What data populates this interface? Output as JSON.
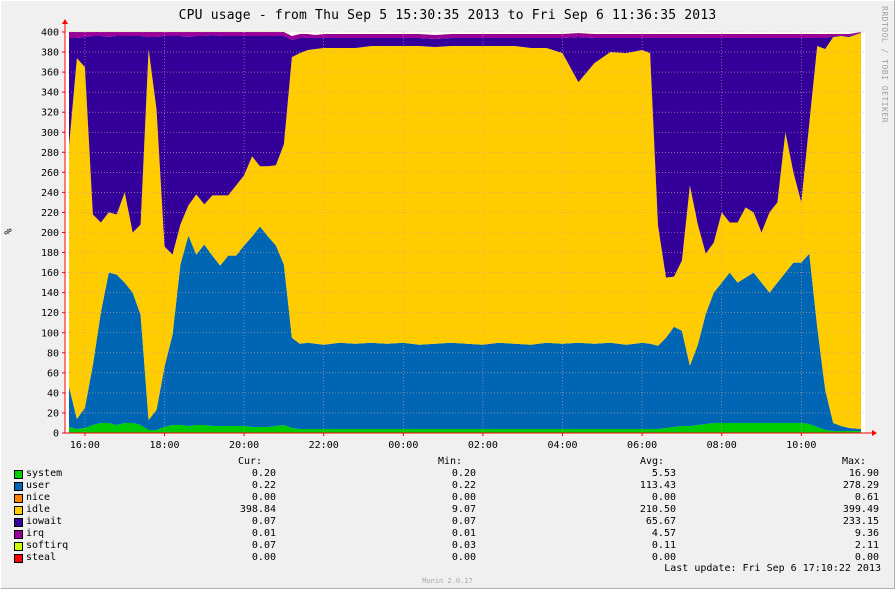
{
  "chart_data": {
    "type": "area",
    "title": "CPU usage - from Thu Sep  5 15:30:35 2013 to Fri Sep  6 11:36:35 2013",
    "ylabel": "%",
    "ylim": [
      0,
      400
    ],
    "yticks": [
      0,
      20,
      40,
      60,
      80,
      100,
      120,
      140,
      160,
      180,
      200,
      220,
      240,
      260,
      280,
      300,
      320,
      340,
      360,
      380,
      400
    ],
    "xlim": [
      15.5,
      35.6
    ],
    "xticks": [
      {
        "x": 16,
        "label": "16:00"
      },
      {
        "x": 18,
        "label": "18:00"
      },
      {
        "x": 20,
        "label": "20:00"
      },
      {
        "x": 22,
        "label": "22:00"
      },
      {
        "x": 24,
        "label": "00:00"
      },
      {
        "x": 26,
        "label": "02:00"
      },
      {
        "x": 28,
        "label": "04:00"
      },
      {
        "x": 30,
        "label": "06:00"
      },
      {
        "x": 32,
        "label": "08:00"
      },
      {
        "x": 34,
        "label": "10:00"
      }
    ],
    "grid": true,
    "stacked": true,
    "x": [
      15.6,
      15.8,
      16.0,
      16.2,
      16.4,
      16.6,
      16.8,
      17.0,
      17.2,
      17.4,
      17.6,
      17.8,
      18.0,
      18.2,
      18.4,
      18.6,
      18.8,
      19.0,
      19.2,
      19.4,
      19.6,
      19.8,
      20.0,
      20.2,
      20.4,
      20.6,
      20.8,
      21.0,
      21.2,
      21.4,
      21.6,
      21.8,
      22.0,
      22.4,
      22.8,
      23.2,
      23.6,
      24.0,
      24.4,
      24.8,
      25.2,
      25.6,
      26.0,
      26.4,
      26.8,
      27.2,
      27.6,
      28.0,
      28.4,
      28.8,
      29.2,
      29.6,
      30.0,
      30.2,
      30.4,
      30.6,
      30.8,
      31.0,
      31.2,
      31.4,
      31.6,
      31.8,
      32.0,
      32.2,
      32.4,
      32.6,
      32.8,
      33.0,
      33.2,
      33.4,
      33.6,
      33.8,
      34.0,
      34.2,
      34.4,
      34.6,
      34.8,
      35.0,
      35.2,
      35.5
    ],
    "series": [
      {
        "name": "system",
        "color": "#00cc00",
        "values": [
          6,
          4,
          5,
          8,
          10,
          10,
          8,
          10,
          10,
          8,
          3,
          3,
          6,
          8,
          8,
          7,
          8,
          8,
          7,
          7,
          7,
          7,
          7,
          6,
          6,
          6,
          7,
          8,
          5,
          4,
          4,
          4,
          4,
          4,
          4,
          4,
          4,
          4,
          4,
          4,
          4,
          4,
          4,
          4,
          4,
          4,
          4,
          4,
          4,
          4,
          4,
          4,
          4,
          4,
          4,
          5,
          6,
          7,
          7,
          8,
          9,
          10,
          10,
          10,
          10,
          10,
          10,
          10,
          10,
          10,
          10,
          10,
          10,
          9,
          6,
          3,
          2,
          2,
          2,
          2
        ]
      },
      {
        "name": "user",
        "color": "#0066b3",
        "values": [
          40,
          10,
          20,
          60,
          110,
          150,
          150,
          140,
          130,
          110,
          10,
          20,
          60,
          90,
          160,
          190,
          170,
          180,
          170,
          160,
          170,
          170,
          180,
          190,
          200,
          190,
          180,
          160,
          90,
          85,
          86,
          85,
          84,
          86,
          85,
          86,
          85,
          86,
          84,
          85,
          86,
          85,
          84,
          86,
          85,
          84,
          86,
          85,
          86,
          85,
          86,
          84,
          86,
          85,
          83,
          90,
          100,
          95,
          60,
          80,
          110,
          130,
          140,
          150,
          140,
          145,
          150,
          140,
          130,
          140,
          150,
          160,
          160,
          170,
          100,
          40,
          8,
          5,
          3,
          2
        ]
      },
      {
        "name": "nice",
        "color": "#ff8000",
        "values": [
          0,
          0,
          0,
          0,
          0,
          0,
          0,
          0,
          0,
          0,
          0,
          0,
          0,
          0,
          0,
          0,
          0,
          0,
          0,
          0,
          0,
          0,
          0,
          0,
          0,
          0,
          0,
          0,
          0,
          0,
          0,
          0,
          0,
          0,
          0,
          0,
          0,
          0,
          0,
          0,
          0,
          0,
          0,
          0,
          0,
          0,
          0,
          0,
          0,
          0,
          0,
          0,
          0,
          0,
          0,
          0,
          0,
          0,
          0,
          0,
          0,
          0,
          0,
          0,
          0,
          0,
          0,
          0,
          0,
          0,
          0,
          0,
          0,
          0,
          0,
          0,
          0,
          0,
          0,
          0
        ]
      },
      {
        "name": "idle",
        "color": "#ffcc00",
        "values": [
          240,
          360,
          340,
          150,
          90,
          60,
          60,
          90,
          60,
          90,
          370,
          300,
          120,
          80,
          40,
          30,
          60,
          40,
          60,
          70,
          60,
          70,
          70,
          80,
          60,
          70,
          80,
          120,
          280,
          290,
          292,
          294,
          296,
          294,
          295,
          296,
          297,
          296,
          298,
          296,
          296,
          297,
          298,
          296,
          297,
          296,
          294,
          290,
          260,
          280,
          290,
          291,
          292,
          290,
          120,
          60,
          50,
          70,
          180,
          120,
          60,
          50,
          70,
          50,
          60,
          70,
          60,
          50,
          80,
          80,
          140,
          90,
          60,
          130,
          280,
          340,
          385,
          389,
          390,
          395
        ]
      },
      {
        "name": "iowait",
        "color": "#330099",
        "values": [
          108,
          20,
          30,
          178,
          186,
          175,
          178,
          156,
          196,
          188,
          12,
          72,
          210,
          218,
          188,
          168,
          158,
          168,
          160,
          159,
          159,
          149,
          139,
          120,
          130,
          130,
          129,
          108,
          17,
          15,
          12,
          11,
          10,
          10,
          10,
          8,
          8,
          8,
          8,
          8,
          8,
          8,
          8,
          8,
          8,
          10,
          10,
          15,
          45,
          25,
          14,
          15,
          12,
          15,
          187,
          239,
          238,
          222,
          147,
          186,
          215,
          204,
          174,
          184,
          184,
          169,
          174,
          194,
          174,
          164,
          94,
          134,
          164,
          85,
          8,
          11,
          1,
          0,
          1,
          0
        ]
      },
      {
        "name": "irq",
        "color": "#990099",
        "values": [
          6,
          6,
          5,
          4,
          4,
          5,
          4,
          4,
          4,
          4,
          5,
          5,
          4,
          4,
          4,
          5,
          4,
          4,
          3,
          4,
          4,
          4,
          4,
          4,
          4,
          4,
          4,
          4,
          4,
          4,
          4,
          3,
          4,
          4,
          4,
          4,
          4,
          4,
          4,
          4,
          4,
          4,
          4,
          4,
          4,
          4,
          4,
          4,
          4,
          4,
          4,
          4,
          4,
          4,
          4,
          4,
          4,
          4,
          4,
          4,
          4,
          4,
          4,
          4,
          4,
          4,
          4,
          4,
          4,
          4,
          4,
          4,
          4,
          4,
          4,
          4,
          2,
          2,
          2,
          1
        ]
      },
      {
        "name": "softirq",
        "color": "#ccff00",
        "values": [
          0.2,
          0.1,
          0.1,
          0.1,
          0.1,
          0.1,
          0.1,
          0.1,
          0.1,
          0.1,
          0.1,
          0.1,
          0.1,
          0.1,
          0.1,
          0.1,
          0.1,
          0.1,
          0.1,
          0.1,
          0.1,
          0.1,
          0.1,
          0.1,
          0.1,
          0.1,
          0.1,
          0.1,
          0.1,
          0.1,
          0.1,
          0.1,
          0.1,
          0.1,
          0.1,
          0.1,
          0.1,
          0.1,
          0.1,
          0.1,
          0.1,
          0.1,
          0.1,
          0.1,
          0.1,
          0.1,
          0.1,
          0.1,
          0.1,
          0.1,
          0.1,
          0.1,
          0.1,
          0.1,
          0.1,
          0.1,
          0.1,
          0.1,
          0.1,
          0.1,
          0.1,
          0.1,
          0.1,
          0.1,
          0.1,
          0.1,
          0.1,
          0.1,
          0.1,
          0.1,
          0.1,
          0.1,
          0.1,
          0.1,
          0.1,
          0.1,
          0.1,
          0.1,
          0.1,
          0.1
        ]
      },
      {
        "name": "steal",
        "color": "#ff0000",
        "values": [
          0,
          0,
          0,
          0,
          0,
          0,
          0,
          0,
          0,
          0,
          0,
          0,
          0,
          0,
          0,
          0,
          0,
          0,
          0,
          0,
          0,
          0,
          0,
          0,
          0,
          0,
          0,
          0,
          0,
          0,
          0,
          0,
          0,
          0,
          0,
          0,
          0,
          0,
          0,
          0,
          0,
          0,
          0,
          0,
          0,
          0,
          0,
          0,
          0,
          0,
          0,
          0,
          0,
          0,
          0,
          0,
          0,
          0,
          0,
          0,
          0,
          0,
          0,
          0,
          0,
          0,
          0,
          0,
          0,
          0,
          0,
          0,
          0,
          0,
          0,
          0,
          0,
          0,
          0,
          0
        ]
      }
    ]
  },
  "legend": {
    "headers": {
      "cur": "Cur:",
      "min": "Min:",
      "avg": "Avg:",
      "max": "Max:"
    },
    "rows": [
      {
        "name": "system",
        "color": "#00cc00",
        "cur": "0.20",
        "min": "0.20",
        "avg": "5.53",
        "max": "16.90"
      },
      {
        "name": "user",
        "color": "#0066b3",
        "cur": "0.22",
        "min": "0.22",
        "avg": "113.43",
        "max": "278.29"
      },
      {
        "name": "nice",
        "color": "#ff8000",
        "cur": "0.00",
        "min": "0.00",
        "avg": "0.00",
        "max": "0.61"
      },
      {
        "name": "idle",
        "color": "#ffcc00",
        "cur": "398.84",
        "min": "9.07",
        "avg": "210.50",
        "max": "399.49"
      },
      {
        "name": "iowait",
        "color": "#330099",
        "cur": "0.07",
        "min": "0.07",
        "avg": "65.67",
        "max": "233.15"
      },
      {
        "name": "irq",
        "color": "#990099",
        "cur": "0.01",
        "min": "0.01",
        "avg": "4.57",
        "max": "9.36"
      },
      {
        "name": "softirq",
        "color": "#ccff00",
        "cur": "0.07",
        "min": "0.03",
        "avg": "0.11",
        "max": "2.11"
      },
      {
        "name": "steal",
        "color": "#ff0000",
        "cur": "0.00",
        "min": "0.00",
        "avg": "0.00",
        "max": "0.00"
      }
    ]
  },
  "footer": {
    "last_update": "Last update: Fri Sep  6 17:10:22 2013",
    "version": "Munin 2.0.17"
  },
  "side_credit": "RRDTOOL / TOBI OETIKER"
}
